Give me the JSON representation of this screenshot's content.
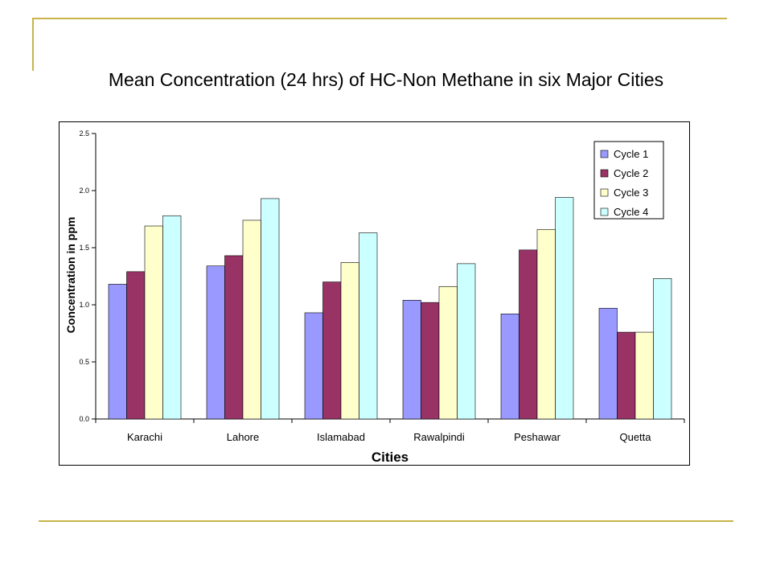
{
  "title": "Mean Concentration (24 hrs) of HC-Non Methane in six Major Cities",
  "colors": {
    "accent_lines": "#c8b44a",
    "cycle1": "#9999ff",
    "cycle2": "#993366",
    "cycle3": "#ffffcc",
    "cycle4": "#ccffff"
  },
  "chart_data": {
    "type": "bar",
    "title": "Mean Concentration (24 hrs) of HC-Non Methane in six Major Cities",
    "xlabel": "Cities",
    "ylabel": "Concentration in ppm",
    "categories": [
      "Karachi",
      "Lahore",
      "Islamabad",
      "Rawalpindi",
      "Peshawar",
      "Quetta"
    ],
    "series": [
      {
        "name": "Cycle 1",
        "color": "#9999ff",
        "values": [
          1.18,
          1.34,
          0.93,
          1.04,
          0.92,
          0.97
        ]
      },
      {
        "name": "Cycle 2",
        "color": "#993366",
        "values": [
          1.29,
          1.43,
          1.2,
          1.02,
          1.48,
          0.76
        ]
      },
      {
        "name": "Cycle 3",
        "color": "#ffffcc",
        "values": [
          1.69,
          1.74,
          1.37,
          1.16,
          1.66,
          0.76
        ]
      },
      {
        "name": "Cycle 4",
        "color": "#ccffff",
        "values": [
          1.78,
          1.93,
          1.63,
          1.36,
          1.94,
          1.23
        ]
      }
    ],
    "ylim": [
      0,
      2.5
    ],
    "yticks": [
      "0.0",
      "0.5",
      "1.0",
      "1.5",
      "2.0",
      "2.5"
    ],
    "legend_position": "top-right",
    "grid": false
  }
}
